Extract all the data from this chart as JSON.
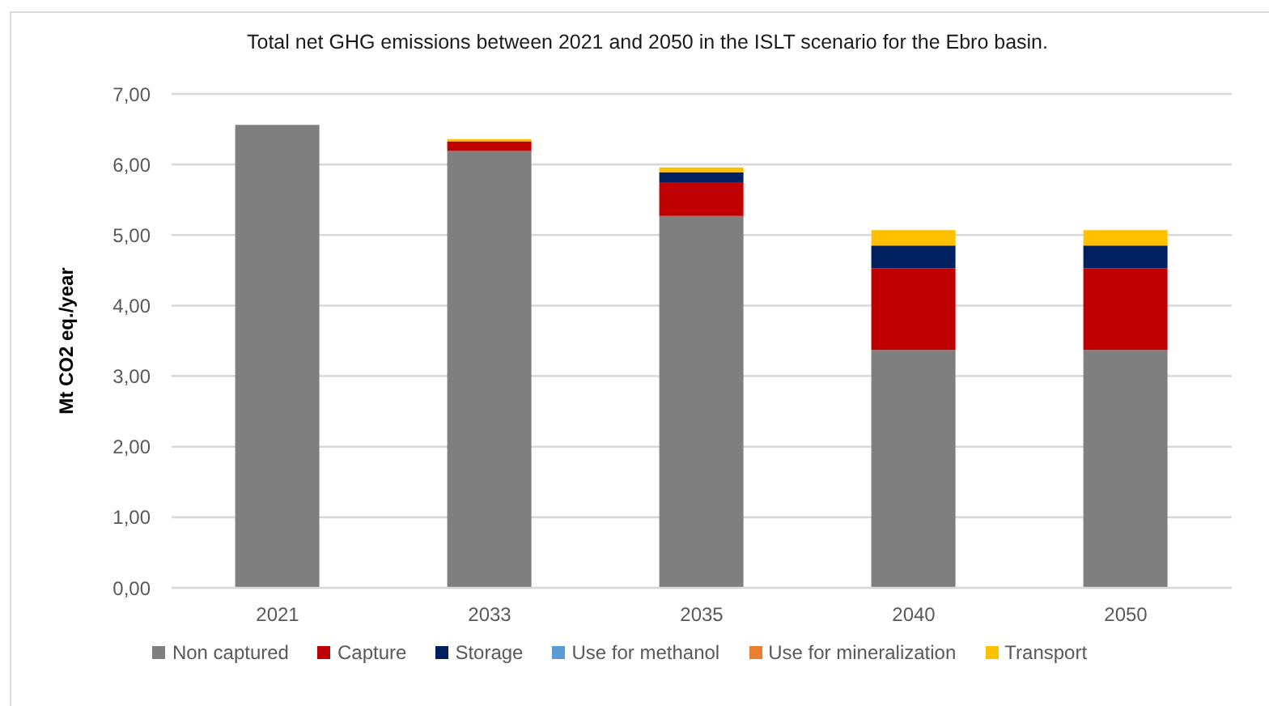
{
  "chart_data": {
    "type": "bar",
    "title": "Total net GHG emissions between 2021 and 2050 in the ISLT scenario for the Ebro basin.",
    "ylabel": "Mt CO2 eq./year",
    "categories": [
      "2021",
      "2033",
      "2035",
      "2040",
      "2050"
    ],
    "stacked": true,
    "series": [
      {
        "name": "Non captured",
        "color": "#7f7f7f",
        "values": [
          6.56,
          6.19,
          5.27,
          3.37,
          3.37
        ]
      },
      {
        "name": "Capture",
        "color": "#c00000",
        "values": [
          0,
          0.14,
          0.48,
          1.16,
          1.16
        ]
      },
      {
        "name": "Storage",
        "color": "#002060",
        "values": [
          0,
          0,
          0.14,
          0.32,
          0.32
        ]
      },
      {
        "name": "Use for methanol",
        "color": "#5b9bd5",
        "values": [
          0,
          0,
          0,
          0,
          0
        ]
      },
      {
        "name": "Use for mineralization",
        "color": "#ed7d31",
        "values": [
          0,
          0,
          0,
          0,
          0
        ]
      },
      {
        "name": "Transport",
        "color": "#ffc000",
        "values": [
          0,
          0.03,
          0.07,
          0.22,
          0.22
        ]
      }
    ],
    "ylim": [
      0,
      7
    ],
    "yticks": [
      {
        "value": 0,
        "label": "0,00"
      },
      {
        "value": 1,
        "label": "1,00"
      },
      {
        "value": 2,
        "label": "2,00"
      },
      {
        "value": 3,
        "label": "3,00"
      },
      {
        "value": 4,
        "label": "4,00"
      },
      {
        "value": 5,
        "label": "5,00"
      },
      {
        "value": 6,
        "label": "6,00"
      },
      {
        "value": 7,
        "label": "7,00"
      }
    ],
    "grid": "y",
    "legend": "bottom"
  }
}
